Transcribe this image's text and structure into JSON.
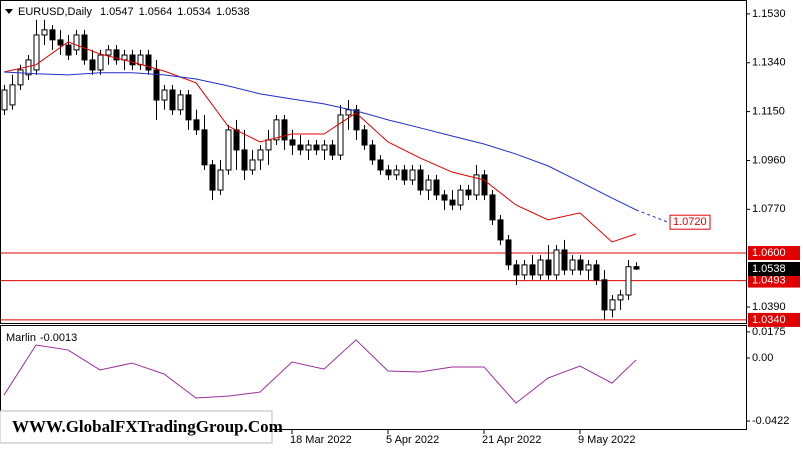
{
  "chart_data": {
    "type": "candlestick",
    "symbol": "EURUSD,Daily",
    "categories": [
      null,
      null,
      null,
      null,
      null,
      null,
      null,
      null,
      null,
      null,
      null,
      null,
      null,
      null,
      null,
      null,
      null,
      null,
      null,
      null,
      null,
      null,
      null,
      null,
      null,
      null,
      null,
      null,
      null,
      null,
      null,
      null,
      null,
      null,
      null,
      null,
      "18 Mar 2022",
      null,
      null,
      null,
      null,
      null,
      null,
      null,
      null,
      null,
      null,
      null,
      "5 Apr 2022",
      null,
      null,
      null,
      null,
      null,
      null,
      null,
      null,
      null,
      null,
      null,
      "21 Apr 2022",
      null,
      null,
      null,
      null,
      null,
      null,
      null,
      null,
      null,
      null,
      null,
      "9 May 2022",
      null,
      null,
      null,
      null,
      null,
      null,
      null
    ],
    "open": [
      1.1157,
      1.1176,
      1.1254,
      1.1293,
      1.1312,
      1.1448,
      1.1468,
      1.1429,
      1.1409,
      1.139,
      1.1448,
      1.1351,
      1.1312,
      1.137,
      1.139,
      1.1351,
      1.137,
      1.1332,
      1.137,
      1.1312,
      1.1195,
      1.1234,
      1.1157,
      1.1215,
      1.1118,
      1.1079,
      1.0943,
      1.0845,
      1.0923,
      1.1079,
      1.1001,
      1.0923,
      1.0962,
      1.1001,
      1.104,
      1.1118,
      1.104,
      1.102,
      1.1001,
      1.102,
      1.1001,
      1.102,
      1.0981,
      1.1137,
      1.1157,
      1.1079,
      1.102,
      1.0962,
      1.0923,
      1.0904,
      1.0923,
      1.0884,
      1.0923,
      1.0845,
      1.0884,
      1.0826,
      1.0806,
      1.0787,
      1.0845,
      1.0826,
      1.0904,
      1.0826,
      1.0729,
      1.0651,
      1.0554,
      1.0515,
      1.0554,
      1.0515,
      1.0573,
      1.0515,
      1.0612,
      1.0534,
      1.0573,
      1.0534,
      1.0554,
      1.0496,
      1.0379,
      1.0418,
      1.0437,
      1.0547
    ],
    "high": [
      1.1254,
      1.1293,
      1.1332,
      1.137,
      1.1507,
      1.1507,
      1.1487,
      1.1468,
      1.1448,
      1.1468,
      1.1468,
      1.139,
      1.139,
      1.1409,
      1.1409,
      1.139,
      1.139,
      1.139,
      1.139,
      1.1351,
      1.1254,
      1.1254,
      1.1234,
      1.1234,
      1.1157,
      1.1137,
      1.0962,
      1.0962,
      1.1098,
      1.1118,
      1.1079,
      1.1001,
      1.102,
      1.1079,
      1.1137,
      1.1137,
      1.1079,
      1.1059,
      1.104,
      1.104,
      1.104,
      1.104,
      1.1176,
      1.1195,
      1.1176,
      1.1098,
      1.104,
      1.0981,
      1.0943,
      1.0943,
      1.0943,
      1.0943,
      1.0943,
      1.0904,
      1.0904,
      1.0845,
      1.0845,
      1.0865,
      1.0865,
      1.0943,
      1.0923,
      1.0845,
      1.0748,
      1.067,
      1.0573,
      1.0573,
      1.0592,
      1.0592,
      1.0631,
      1.0631,
      1.0651,
      1.0592,
      1.0592,
      1.0573,
      1.0573,
      1.0534,
      1.0437,
      1.0457,
      1.0573,
      1.0564
    ],
    "low": [
      1.1137,
      1.1157,
      1.1234,
      1.1273,
      1.1293,
      1.1409,
      1.139,
      1.137,
      1.1351,
      1.137,
      1.1332,
      1.1293,
      1.1293,
      1.1332,
      1.1332,
      1.1312,
      1.1312,
      1.1312,
      1.1293,
      1.1118,
      1.1157,
      1.1137,
      1.1137,
      1.1079,
      1.1059,
      1.0923,
      1.0806,
      1.0826,
      1.0904,
      1.0923,
      1.0884,
      1.0904,
      1.0923,
      1.0943,
      1.102,
      1.1001,
      1.0981,
      1.0981,
      1.0962,
      1.0981,
      1.0962,
      1.0962,
      1.0962,
      1.1079,
      1.104,
      1.1001,
      1.0943,
      1.0904,
      1.0884,
      1.0884,
      1.0865,
      1.0865,
      1.0826,
      1.0806,
      1.0806,
      1.0767,
      1.0767,
      1.0767,
      1.0806,
      1.0806,
      1.0806,
      1.0709,
      1.0631,
      1.0534,
      1.0476,
      1.0496,
      1.0496,
      1.0496,
      1.0496,
      1.0496,
      1.0515,
      1.0515,
      1.0515,
      1.0496,
      1.0476,
      1.034,
      1.035,
      1.0379,
      1.0418,
      1.0534
    ],
    "close": [
      1.1234,
      1.1254,
      1.1312,
      1.1351,
      1.1448,
      1.1468,
      1.1429,
      1.1409,
      1.137,
      1.1448,
      1.1351,
      1.1312,
      1.137,
      1.139,
      1.1351,
      1.137,
      1.1332,
      1.137,
      1.1312,
      1.1195,
      1.1234,
      1.1157,
      1.1215,
      1.1118,
      1.1079,
      1.0943,
      1.0845,
      1.0923,
      1.1079,
      1.1001,
      1.0923,
      1.0962,
      1.1001,
      1.104,
      1.1118,
      1.104,
      1.102,
      1.1001,
      1.102,
      1.1001,
      1.102,
      1.0981,
      1.1137,
      1.1157,
      1.1079,
      1.102,
      1.0962,
      1.0923,
      1.0904,
      1.0923,
      1.0884,
      1.0923,
      1.0845,
      1.0884,
      1.0826,
      1.0806,
      1.0787,
      1.0845,
      1.0826,
      1.0904,
      1.0826,
      1.0729,
      1.0651,
      1.0554,
      1.0515,
      1.0554,
      1.0515,
      1.0573,
      1.0515,
      1.0612,
      1.0534,
      1.0573,
      1.0534,
      1.0554,
      1.0496,
      1.0379,
      1.0418,
      1.0437,
      1.0547,
      1.0538
    ],
    "lines": [
      {
        "color": "#e00000",
        "x": [
          0,
          4,
          8,
          12,
          16,
          20,
          24,
          28,
          32,
          36,
          40,
          44,
          48,
          52,
          56,
          60,
          64,
          68,
          72,
          76,
          79
        ],
        "values": [
          1.1304,
          1.1332,
          1.1421,
          1.1374,
          1.1343,
          1.1308,
          1.1262,
          1.1094,
          1.1032,
          1.1063,
          1.1063,
          1.1145,
          1.1032,
          1.097,
          1.0915,
          1.0884,
          1.0787,
          1.0729,
          1.0756,
          1.0643,
          1.0674
        ]
      },
      {
        "color": "#1f2fc8",
        "x": [
          0,
          4,
          8,
          12,
          16,
          20,
          24,
          28,
          32,
          36,
          40,
          44,
          48,
          52,
          56,
          60,
          64,
          68,
          72,
          76,
          79
        ],
        "values": [
          1.1304,
          1.1297,
          1.1293,
          1.1301,
          1.1301,
          1.1293,
          1.1277,
          1.125,
          1.1219,
          1.1199,
          1.118,
          1.1153,
          1.1118,
          1.1087,
          1.1055,
          1.1024,
          1.0985,
          1.0939,
          1.0877,
          1.0814,
          1.0768
        ]
      }
    ],
    "forecast": {
      "value": 1.072,
      "label": "1.0720"
    },
    "levels": [
      {
        "value": 1.06,
        "label": "1.0600"
      },
      {
        "value": 1.0493,
        "label": "1.0493"
      },
      {
        "value": 1.034,
        "label": "1.0340"
      }
    ],
    "last_price": {
      "value": 1.0538,
      "label": "1.0538"
    },
    "ylim": [
      1.0328,
      1.1584
    ],
    "yticks": [
      {
        "value": 1.153,
        "label": "1.1530"
      },
      {
        "value": 1.134,
        "label": "1.1340"
      },
      {
        "value": 1.115,
        "label": "1.1150"
      },
      {
        "value": 1.096,
        "label": "1.0960"
      },
      {
        "value": 1.077,
        "label": "1.0770"
      },
      {
        "value": 1.039,
        "label": "1.0390"
      }
    ],
    "indicator": {
      "name": "Marlin",
      "color": "#9b2d9b",
      "x": [
        0,
        4,
        8,
        12,
        16,
        20,
        24,
        28,
        32,
        36,
        40,
        44,
        48,
        52,
        56,
        60,
        64,
        68,
        72,
        76,
        79
      ],
      "values": [
        -0.0248,
        0.0087,
        0.0054,
        -0.008,
        -0.0034,
        -0.0107,
        -0.0268,
        -0.0255,
        -0.0228,
        -0.0027,
        -0.0074,
        0.0121,
        -0.0087,
        -0.0094,
        -0.006,
        -0.006,
        -0.0302,
        -0.0134,
        -0.0054,
        -0.0168,
        -0.0013
      ],
      "ylim": [
        -0.0482,
        0.0221
      ],
      "yticks": [
        0.0175,
        {
          "value": 0,
          "label": "0.00"
        },
        -0.0422
      ]
    },
    "watermark": "WWW.GlobalFXTradingGroup.Com"
  }
}
